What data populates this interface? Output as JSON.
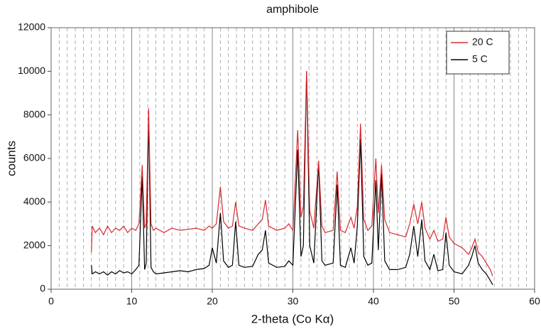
{
  "chart_data": {
    "type": "line",
    "title": "amphibole",
    "x_label": "2-theta (Co Kα)",
    "y_label": "counts",
    "x": [
      5,
      5.1,
      5.5,
      6,
      6.5,
      7,
      7.5,
      8,
      8.5,
      9,
      9.5,
      10,
      10.5,
      10.9,
      11.3,
      11.6,
      11.8,
      12.1,
      12.4,
      12.7,
      13,
      14,
      15,
      16,
      17,
      18,
      19,
      19.6,
      20,
      20.5,
      21,
      21.4,
      22,
      22.5,
      22.9,
      23.3,
      24,
      25,
      25.7,
      26.2,
      26.6,
      27,
      28,
      29,
      29.5,
      30,
      30.6,
      31,
      31.3,
      31.7,
      32.1,
      32.6,
      33.2,
      33.6,
      34,
      35,
      35.5,
      35.9,
      36.5,
      37.2,
      37.6,
      38,
      38.4,
      38.8,
      39.3,
      39.8,
      40.3,
      40.6,
      41,
      41.4,
      42,
      43,
      44,
      44.5,
      45,
      45.5,
      46,
      46.4,
      47,
      47.5,
      48,
      48.6,
      49,
      49.4,
      50,
      51,
      51.8,
      52.2,
      52.6,
      53,
      53.5,
      54,
      54.5,
      54.8
    ],
    "series": [
      {
        "name": "20 C",
        "color": "#d9282f",
        "values": [
          1700,
          2900,
          2600,
          2800,
          2500,
          2900,
          2600,
          2800,
          2700,
          2900,
          2600,
          2800,
          2700,
          3000,
          5700,
          2800,
          3000,
          8300,
          3000,
          2700,
          2800,
          2600,
          2800,
          2700,
          2750,
          2800,
          2700,
          2900,
          2800,
          3000,
          4700,
          3100,
          2800,
          2900,
          4000,
          2900,
          2800,
          2700,
          3000,
          3200,
          4100,
          2900,
          2700,
          2800,
          3000,
          2700,
          7300,
          3300,
          3800,
          10000,
          3600,
          2800,
          5900,
          2900,
          2600,
          2700,
          5400,
          2700,
          2600,
          3300,
          2800,
          3800,
          7600,
          3200,
          2700,
          2900,
          6000,
          3500,
          5700,
          3200,
          2600,
          2500,
          2400,
          3000,
          3900,
          3000,
          4000,
          2800,
          2300,
          2700,
          2200,
          2300,
          3300,
          2400,
          2100,
          1900,
          1600,
          1900,
          2300,
          1700,
          1500,
          1200,
          900,
          600
        ]
      },
      {
        "name": "5 C",
        "color": "#000000",
        "values": [
          1100,
          700,
          800,
          700,
          800,
          650,
          800,
          700,
          850,
          750,
          800,
          700,
          900,
          1100,
          5200,
          900,
          1200,
          7900,
          1000,
          800,
          700,
          750,
          800,
          850,
          800,
          900,
          950,
          1100,
          1900,
          1200,
          3500,
          1300,
          1000,
          1100,
          3100,
          1100,
          1000,
          1050,
          1600,
          1800,
          2700,
          1200,
          1000,
          1050,
          1300,
          1100,
          6400,
          1500,
          2000,
          10000,
          2000,
          1200,
          5800,
          1300,
          1100,
          1200,
          4800,
          1100,
          1000,
          1900,
          1200,
          2900,
          6900,
          1500,
          1100,
          1200,
          5000,
          1800,
          5300,
          1300,
          900,
          900,
          1000,
          1600,
          2900,
          1500,
          3200,
          1300,
          900,
          1600,
          850,
          900,
          2600,
          1100,
          800,
          700,
          1100,
          1500,
          2000,
          1200,
          900,
          700,
          400,
          200
        ]
      }
    ],
    "xlim": [
      0,
      60
    ],
    "xticks": [
      0,
      10,
      20,
      30,
      40,
      50,
      60
    ],
    "ylim": [
      0,
      12000
    ],
    "yticks": [
      0,
      2000,
      4000,
      6000,
      8000,
      10000,
      12000
    ],
    "x_minor_grid": [
      1,
      2,
      3,
      4,
      5,
      6,
      7,
      8,
      9,
      11,
      12,
      13,
      14,
      15,
      16,
      17,
      18,
      19,
      21,
      22,
      23,
      24,
      25,
      26,
      27,
      28,
      29,
      31,
      32,
      33,
      34,
      35,
      36,
      37,
      38,
      39,
      41,
      42,
      43,
      44,
      45,
      46,
      47,
      48,
      49,
      51,
      52,
      53,
      54,
      55,
      56,
      57,
      58,
      59
    ],
    "grid": true,
    "legend": "upper right"
  }
}
